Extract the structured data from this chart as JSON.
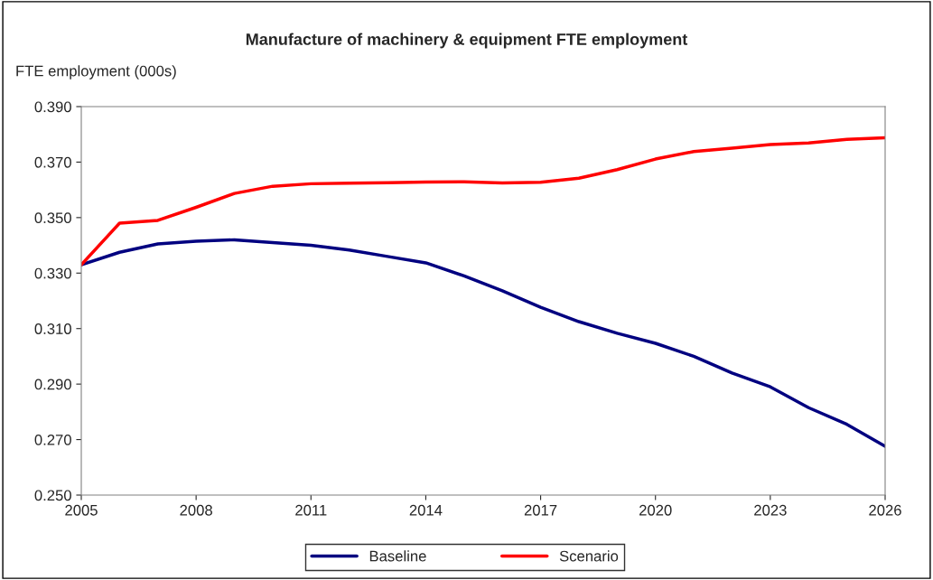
{
  "chart_data": {
    "type": "line",
    "title": "Manufacture of machinery & equipment FTE employment",
    "ylabel": "FTE employment (000s)",
    "x": [
      2005,
      2006,
      2007,
      2008,
      2009,
      2010,
      2011,
      2012,
      2013,
      2014,
      2015,
      2016,
      2017,
      2018,
      2019,
      2020,
      2021,
      2022,
      2023,
      2024,
      2025,
      2026
    ],
    "series": [
      {
        "name": "Baseline",
        "color": "#000080",
        "values": [
          0.333,
          0.3375,
          0.3405,
          0.3415,
          0.342,
          0.341,
          0.34,
          0.3383,
          0.336,
          0.3337,
          0.329,
          0.3236,
          0.3177,
          0.3125,
          0.3083,
          0.3047,
          0.3,
          0.294,
          0.289,
          0.2815,
          0.2755,
          0.2676
        ]
      },
      {
        "name": "Scenario",
        "color": "#ff0000",
        "values": [
          0.333,
          0.348,
          0.349,
          0.3537,
          0.3587,
          0.3613,
          0.3622,
          0.3624,
          0.3626,
          0.3628,
          0.3629,
          0.3625,
          0.3627,
          0.3642,
          0.3673,
          0.3711,
          0.3738,
          0.375,
          0.3763,
          0.3769,
          0.3782,
          0.3788
        ]
      }
    ],
    "xlim": [
      2005,
      2026
    ],
    "xticks": [
      2005,
      2008,
      2011,
      2014,
      2017,
      2020,
      2023,
      2026
    ],
    "ylim": [
      0.25,
      0.39
    ],
    "yticks": [
      {
        "value": 0.25,
        "label": "0.250"
      },
      {
        "value": 0.27,
        "label": "0.270"
      },
      {
        "value": 0.29,
        "label": "0.290"
      },
      {
        "value": 0.31,
        "label": "0.310"
      },
      {
        "value": 0.33,
        "label": "0.330"
      },
      {
        "value": 0.35,
        "label": "0.350"
      },
      {
        "value": 0.37,
        "label": "0.370"
      },
      {
        "value": 0.39,
        "label": "0.390"
      }
    ],
    "grid": false,
    "legend": "bottom",
    "marker": "none",
    "line_style": "solid"
  }
}
